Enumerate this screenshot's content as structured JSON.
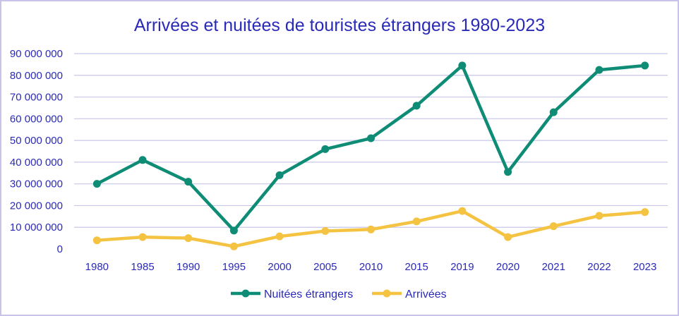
{
  "chart_data": {
    "type": "line",
    "title": "Arrivées et nuitées de touristes étrangers 1980-2023",
    "xlabel": "",
    "ylabel": "",
    "categories": [
      "1980",
      "1985",
      "1990",
      "1995",
      "2000",
      "2005",
      "2010",
      "2015",
      "2019",
      "2020",
      "2021",
      "2022",
      "2023"
    ],
    "ylim": [
      0,
      90000000
    ],
    "yticks": [
      0,
      10000000,
      20000000,
      30000000,
      40000000,
      50000000,
      60000000,
      70000000,
      80000000,
      90000000
    ],
    "ytick_labels": [
      "0",
      "10 000 000",
      "20 000 000",
      "30 000 000",
      "40 000 000",
      "50 000 000",
      "60 000 000",
      "70 000 000",
      "80 000 000",
      "90 000 000"
    ],
    "grid": true,
    "legend_position": "bottom",
    "series": [
      {
        "name": "Nuitées étrangers",
        "color": "#0e8c76",
        "values": [
          30000000,
          41000000,
          31000000,
          8500000,
          34000000,
          46000000,
          51000000,
          66000000,
          84500000,
          35500000,
          63000000,
          82500000,
          84500000
        ]
      },
      {
        "name": "Arrivées",
        "color": "#f5c342",
        "values": [
          4000000,
          5500000,
          5000000,
          1200000,
          5800000,
          8300000,
          9000000,
          12700000,
          17500000,
          5500000,
          10500000,
          15300000,
          17000000
        ]
      }
    ]
  }
}
